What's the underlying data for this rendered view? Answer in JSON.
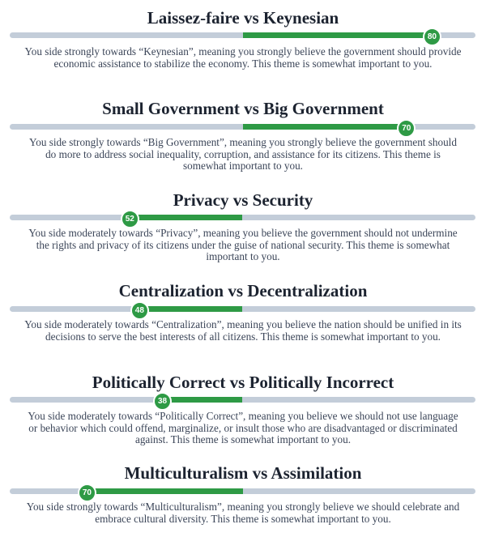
{
  "themes": [
    {
      "title": "Laissez-faire vs Keynesian",
      "score": "80",
      "position": 0.906,
      "side": "right",
      "description": "You side strongly towards “Keynesian”, meaning you strongly believe the government should provide economic assistance to stabilize the economy. This theme is somewhat important to you."
    },
    {
      "title": "Small Government vs Big Government",
      "score": "70",
      "position": 0.851,
      "side": "right",
      "description": "You side strongly towards “Big Government”, meaning you strongly believe the government should do more to address social inequality, corruption, and assistance for its citizens. This theme is somewhat important to you."
    },
    {
      "title": "Privacy vs Security",
      "score": "52",
      "position": 0.257,
      "side": "left",
      "description": "You side moderately towards “Privacy”, meaning you believe the government should not undermine the rights and privacy of its citizens under the guise of national security. This theme is somewhat important to you."
    },
    {
      "title": "Centralization vs Decentralization",
      "score": "48",
      "position": 0.278,
      "side": "left",
      "description": "You side moderately towards “Centralization”, meaning you believe the nation should be unified in its decisions to serve the best interests of all citizens. This theme is somewhat important to you."
    },
    {
      "title": "Politically Correct vs Politically Incorrect",
      "score": "38",
      "position": 0.327,
      "side": "left",
      "description": "You side moderately towards “Politically Correct”, meaning you believe we should not use language or behavior which could offend, marginalize, or insult those who are disadvantaged or discriminated against. This theme is somewhat important to you."
    },
    {
      "title": "Multiculturalism vs Assimilation",
      "score": "70",
      "position": 0.165,
      "side": "left",
      "description": "You side strongly towards “Multiculturalism”, meaning you strongly believe we should celebrate and embrace cultural diversity. This theme is somewhat important to you."
    }
  ],
  "colors": {
    "fill": "#2e9a45",
    "track": "#c3cdd9",
    "title": "#1c2330",
    "text": "#3b4558"
  }
}
